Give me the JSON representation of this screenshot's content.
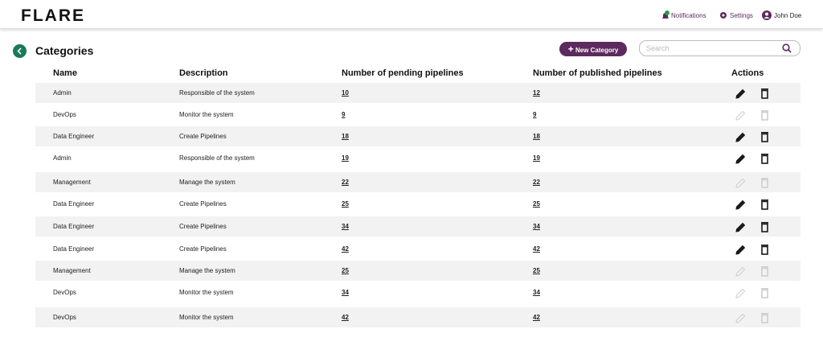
{
  "header": {
    "logo": "FLARE",
    "nav": [
      "Notifications",
      "Settings",
      "John Doe"
    ]
  },
  "page": {
    "title": "Categories",
    "button": "New Category",
    "search_placeholder": "Search"
  },
  "table": {
    "columns": [
      "Name",
      "Description",
      "Number of pending pipelines",
      "Number of published pipelines",
      "Actions"
    ],
    "rows": [
      {
        "cells": [
          "Admin",
          "Responsible of the system",
          10,
          12
        ],
        "editable": true
      },
      {
        "cells": [
          "DevOps",
          "Monitor the system",
          9,
          9
        ],
        "editable": false
      },
      {
        "cells": [
          "Data Engineer",
          "Create Pipelines",
          18,
          18
        ],
        "editable": true
      },
      {
        "cells": [
          "Admin",
          "Responsible of the system",
          19,
          19
        ],
        "editable": true
      },
      {
        "cells": [
          "Management",
          "Manage the system",
          22,
          22
        ],
        "editable": false
      },
      {
        "cells": [
          "Data Engineer",
          "Create Pipelines",
          25,
          25
        ],
        "editable": true
      },
      {
        "cells": [
          "Data Engineer",
          "Create Pipelines",
          34,
          34
        ],
        "editable": true
      },
      {
        "cells": [
          "Data Engineer",
          "Create Pipelines",
          42,
          42
        ],
        "editable": true
      },
      {
        "cells": [
          "Management",
          "Manage the system",
          25,
          25
        ],
        "editable": false
      },
      {
        "cells": [
          "DevOps",
          "Monitor the system",
          34,
          34
        ],
        "editable": false
      },
      {
        "cells": [
          "DevOps",
          "Monitor the system",
          42,
          42
        ],
        "editable": false
      }
    ]
  }
}
